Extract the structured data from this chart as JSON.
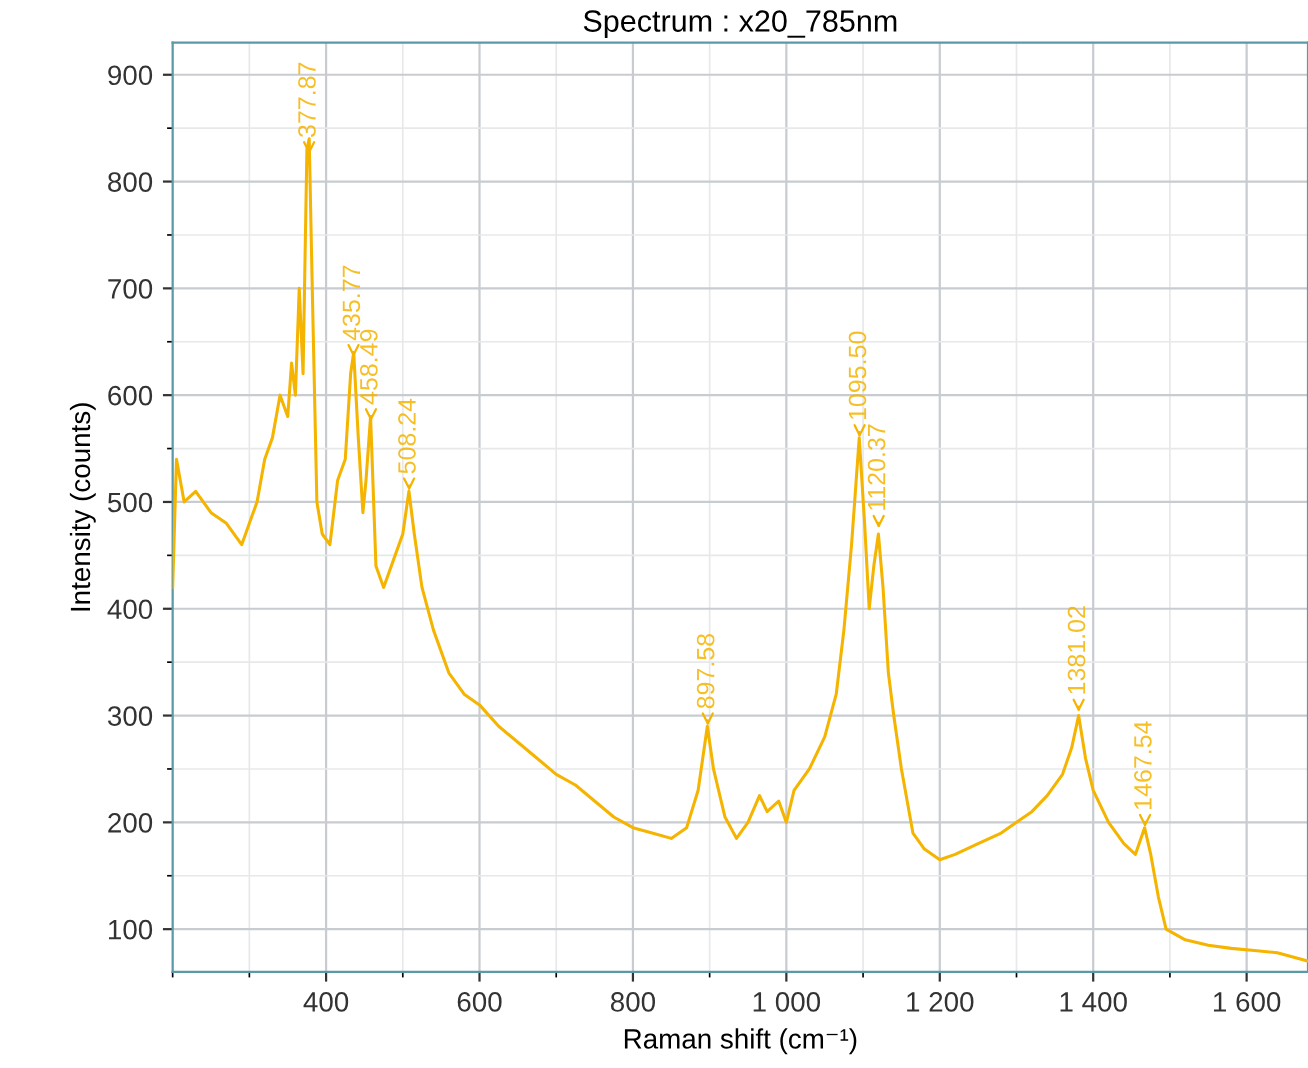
{
  "chart_data": {
    "type": "line",
    "title": "Spectrum : x20_785nm",
    "xlabel": "Raman shift (cm⁻¹)",
    "ylabel": "Intensity (counts)",
    "x": [
      200,
      205,
      215,
      230,
      250,
      270,
      290,
      300,
      310,
      320,
      330,
      340,
      350,
      355,
      360,
      365,
      370,
      375,
      378,
      382,
      388,
      395,
      405,
      415,
      425,
      432,
      436,
      442,
      448,
      452,
      458,
      465,
      475,
      490,
      500,
      508,
      515,
      525,
      540,
      560,
      580,
      600,
      625,
      650,
      675,
      700,
      725,
      750,
      775,
      800,
      825,
      850,
      870,
      885,
      897,
      905,
      920,
      935,
      950,
      965,
      975,
      990,
      1000,
      1010,
      1030,
      1050,
      1065,
      1075,
      1085,
      1095,
      1102,
      1108,
      1114,
      1120,
      1126,
      1133,
      1140,
      1150,
      1165,
      1180,
      1200,
      1220,
      1250,
      1280,
      1300,
      1320,
      1340,
      1360,
      1372,
      1381,
      1390,
      1400,
      1420,
      1440,
      1455,
      1467,
      1475,
      1485,
      1495,
      1520,
      1550,
      1580,
      1610,
      1640,
      1680
    ],
    "series": [
      {
        "color": "#f5b400",
        "values": [
          420,
          540,
          500,
          510,
          490,
          480,
          460,
          480,
          500,
          540,
          560,
          600,
          580,
          630,
          600,
          700,
          620,
          830,
          840,
          700,
          500,
          470,
          460,
          520,
          540,
          620,
          640,
          560,
          490,
          520,
          580,
          440,
          420,
          450,
          470,
          510,
          470,
          420,
          380,
          340,
          320,
          310,
          290,
          275,
          260,
          245,
          235,
          220,
          205,
          195,
          190,
          185,
          195,
          230,
          290,
          250,
          205,
          185,
          200,
          225,
          210,
          220,
          200,
          230,
          250,
          280,
          320,
          380,
          460,
          560,
          480,
          400,
          440,
          470,
          420,
          340,
          300,
          250,
          190,
          175,
          165,
          170,
          180,
          190,
          200,
          210,
          225,
          245,
          270,
          300,
          260,
          230,
          200,
          180,
          170,
          195,
          170,
          130,
          100,
          90,
          85,
          82,
          80,
          78,
          70
        ]
      }
    ],
    "annotations": [
      {
        "text": "377.87",
        "x": 377.87,
        "y": 820
      },
      {
        "text": "435.77",
        "x": 435.77,
        "y": 630
      },
      {
        "text": "458.49",
        "x": 458.49,
        "y": 570
      },
      {
        "text": "508.24",
        "x": 508.24,
        "y": 505
      },
      {
        "text": "897.58",
        "x": 897.58,
        "y": 285
      },
      {
        "text": "1095.50",
        "x": 1095.5,
        "y": 555
      },
      {
        "text": "1120.37",
        "x": 1120.37,
        "y": 470
      },
      {
        "text": "1381.02",
        "x": 1381.02,
        "y": 298
      },
      {
        "text": "1467.54",
        "x": 1467.54,
        "y": 190
      }
    ],
    "xlim": [
      200,
      1680
    ],
    "ylim": [
      60,
      930
    ],
    "xticks": [
      400,
      600,
      800,
      {
        "value": 1000,
        "label": "1 000"
      },
      {
        "value": 1200,
        "label": "1 200"
      },
      {
        "value": 1400,
        "label": "1 400"
      },
      {
        "value": 1600,
        "label": "1 600"
      }
    ],
    "yticks": [
      100,
      200,
      300,
      400,
      500,
      600,
      700,
      800,
      900
    ],
    "grid": true,
    "legend": false,
    "marker": "none",
    "line_style": "solid"
  }
}
